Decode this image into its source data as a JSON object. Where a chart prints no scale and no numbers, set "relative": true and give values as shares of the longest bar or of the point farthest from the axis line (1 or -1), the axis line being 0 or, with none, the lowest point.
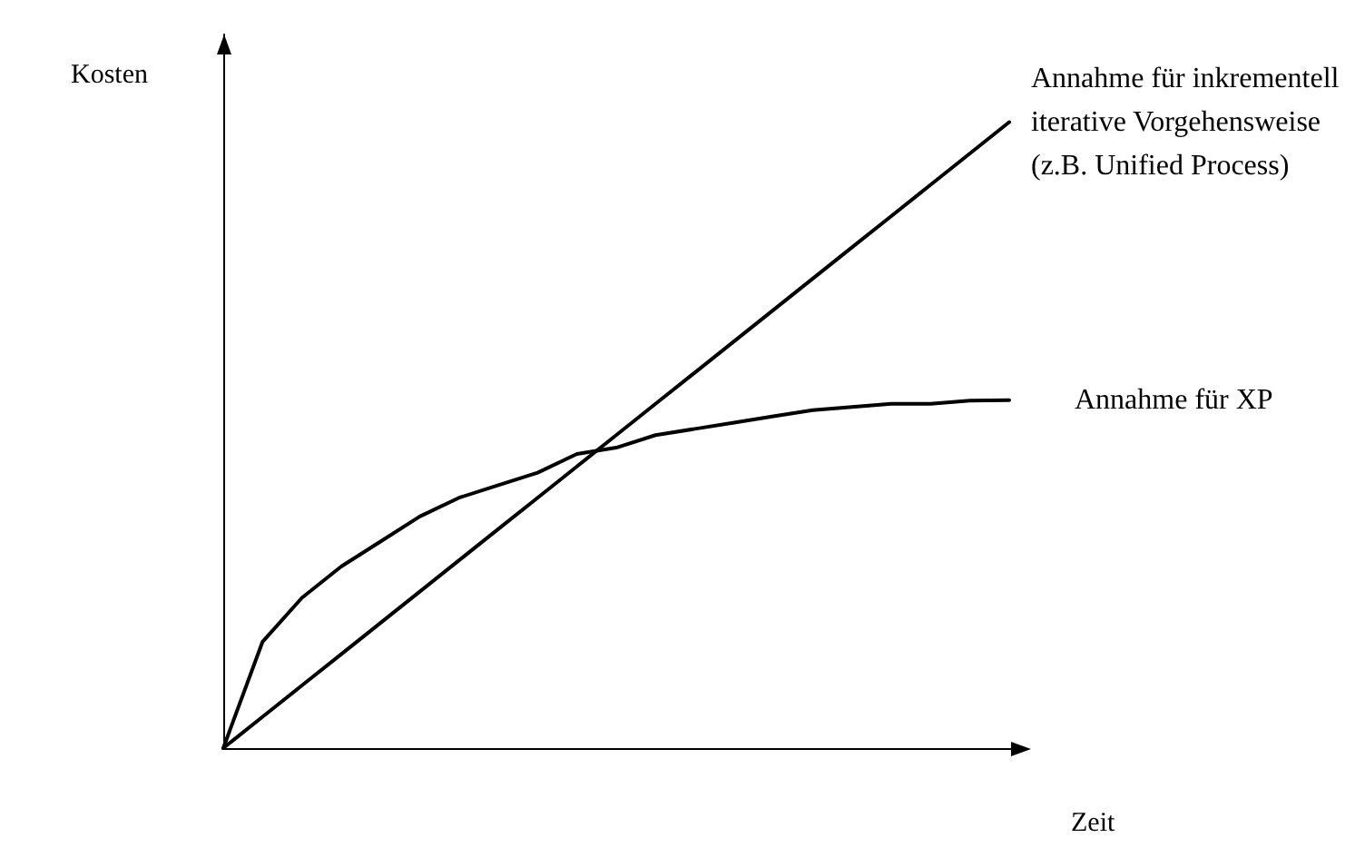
{
  "chart_data": {
    "type": "line",
    "relative": true,
    "xlabel": "Zeit",
    "ylabel": "Kosten",
    "marker": "none",
    "line_style": "solid",
    "categories": [
      null,
      null,
      null,
      null,
      null,
      null,
      null,
      null,
      null,
      null,
      null,
      null,
      null,
      null,
      null,
      null,
      null,
      null,
      null,
      null,
      null
    ],
    "series": [
      {
        "name": "Annahme für inkrementell iterative Vorgehensweise (z.B. Unified Process)",
        "color": "#000000",
        "values": [
          0,
          0.05,
          0.1,
          0.15,
          0.2,
          0.25,
          0.3,
          0.35,
          0.4,
          0.45,
          0.5,
          0.55,
          0.6,
          0.65,
          0.7,
          0.75,
          0.8,
          0.85,
          0.9,
          0.95,
          1
        ]
      },
      {
        "name": "Annahme für XP",
        "color": "#000000",
        "values": [
          0,
          0.17,
          0.24,
          0.29,
          0.33,
          0.37,
          0.4,
          0.42,
          0.44,
          0.47,
          0.48,
          0.5,
          0.51,
          0.52,
          0.53,
          0.54,
          0.545,
          0.55,
          0.55,
          0.555,
          0.556
        ]
      }
    ]
  }
}
